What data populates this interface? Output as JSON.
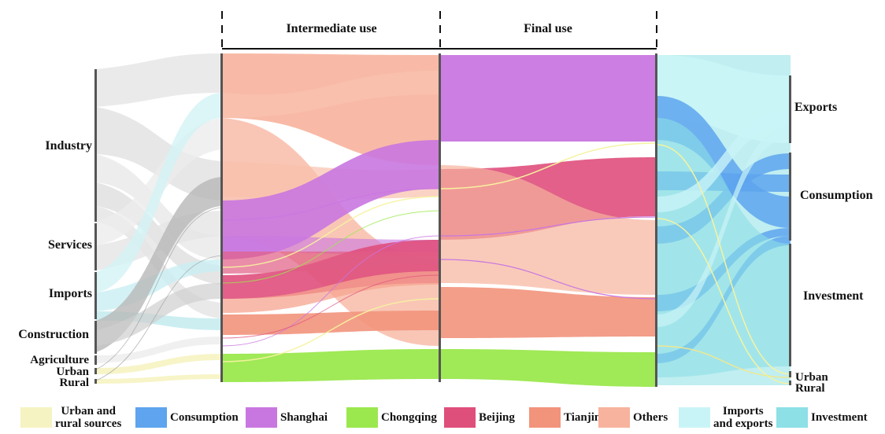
{
  "columns": {
    "intermediate": "Intermediate use",
    "final": "Final use"
  },
  "source_nodes": {
    "industry": "Industry",
    "services": "Services",
    "imports": "Imports",
    "construction": "Construction",
    "agriculture": "Agriculture",
    "urban": "Urban",
    "rural": "Rural"
  },
  "target_nodes": {
    "exports": "Exports",
    "consumption": "Consumption",
    "investment": "Investment",
    "urban": "Urban",
    "rural": "Rural"
  },
  "legend": [
    {
      "line1": "Urban and",
      "line2": "rural sources",
      "color": "#f6f3c2"
    },
    {
      "line1": "Consumption",
      "line2": "",
      "color": "#5ea4ee"
    },
    {
      "line1": "Shanghai",
      "line2": "",
      "color": "#c977e0"
    },
    {
      "line1": "Chongqing",
      "line2": "",
      "color": "#9be84e"
    },
    {
      "line1": "Beijing",
      "line2": "",
      "color": "#df4f7c"
    },
    {
      "line1": "Tianjin",
      "line2": "",
      "color": "#f2937c"
    },
    {
      "line1": "Others",
      "line2": "",
      "color": "#f7b39d"
    },
    {
      "line1": "Imports",
      "line2": "and exports",
      "color": "#c9f4f7"
    },
    {
      "line1": "Investment",
      "line2": "",
      "color": "#8ce0e6"
    }
  ],
  "colors": {
    "urban_rural": "#f6f3c2",
    "consumption": "#5ea4ee",
    "shanghai": "#c977e0",
    "chongqing": "#9be84e",
    "beijing": "#df4f7c",
    "tianjin": "#f2937c",
    "others": "#f7b39d",
    "imports_exports": "#c9f4f7",
    "investment": "#8ce0e6",
    "industry": "#e6e6e6",
    "services": "#e9e9e9",
    "construction": "#b8b8b8",
    "axis": "#555555"
  }
}
